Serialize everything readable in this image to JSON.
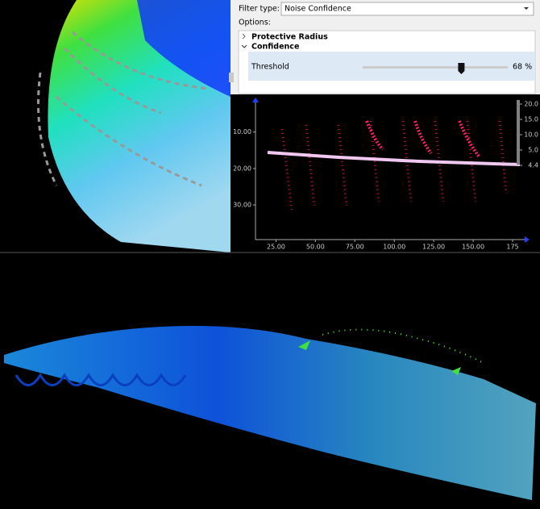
{
  "filter_panel": {
    "filter_type_label": "Filter type:",
    "filter_type_value": "Noise Confidence",
    "options_label": "Options:",
    "sections": [
      {
        "label": "Protective Radius"
      },
      {
        "label": "Confidence"
      }
    ],
    "threshold": {
      "label": "Threshold",
      "value": 68,
      "value_label": "68 %"
    }
  },
  "profile_view": {
    "xlim": [
      12,
      175
    ],
    "xticks": [
      {
        "value": 25,
        "label": "25.00"
      },
      {
        "value": 50,
        "label": "50.00"
      },
      {
        "value": 75,
        "label": "75.00"
      },
      {
        "value": 100,
        "label": "100.00"
      },
      {
        "value": 125,
        "label": "125.00"
      },
      {
        "value": 150,
        "label": "150.00"
      },
      {
        "value": 175,
        "label": "175"
      }
    ],
    "ylim": [
      1,
      39.5
    ],
    "yticks": [
      {
        "value": 10,
        "label": "10.00"
      },
      {
        "value": 20,
        "label": "20.00"
      },
      {
        "value": 30,
        "label": "30.00"
      }
    ],
    "colorbar_ticks": [
      {
        "value": 20,
        "label": "20.0"
      },
      {
        "value": 15,
        "label": "15.0"
      },
      {
        "value": 10,
        "label": "10.0"
      },
      {
        "value": 5,
        "label": "5.0"
      },
      {
        "value": 4.4,
        "label": "4.4"
      }
    ]
  }
}
